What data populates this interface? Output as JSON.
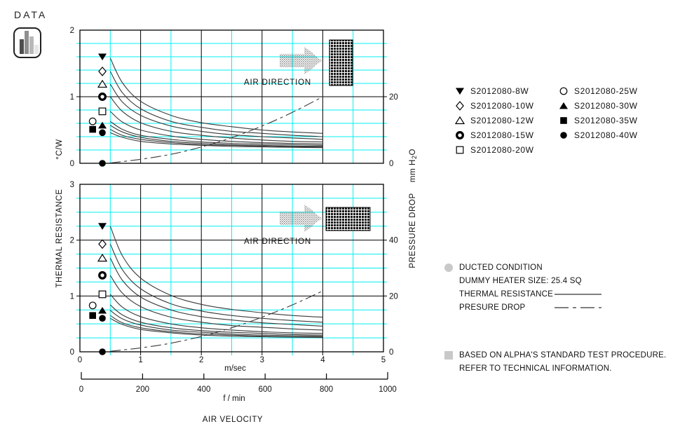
{
  "badge": {
    "label": "DATA"
  },
  "colors": {
    "grid": "#00f0f0",
    "curve": "#3a3a3a",
    "axis": "#000000",
    "bullet": "#c9c9c9",
    "bar_grays": [
      "#4d4d4d",
      "#8f8f8f",
      "#b8b8b8",
      "#e6e6e6"
    ]
  },
  "axis_titles": {
    "left_primary": "THERMAL RESISTANCE",
    "left_unit": "°C/W",
    "right_primary": "PRESSURE DROP",
    "right_unit": "mm H2O",
    "x_primary": "m/sec",
    "x_secondary": "f / min",
    "x_title": "AIR VELOCITY"
  },
  "secondary_axis": {
    "labels": [
      "0",
      "200",
      "400",
      "600",
      "800",
      "1000"
    ]
  },
  "legend": {
    "columns": [
      [
        {
          "marker": "tri-down-f",
          "label": "S2012080-8W"
        },
        {
          "marker": "diamond-o",
          "label": "S2012080-10W"
        },
        {
          "marker": "tri-up-o",
          "label": "S2012080-12W"
        },
        {
          "marker": "circle-bull",
          "label": "S2012080-15W"
        },
        {
          "marker": "square-o",
          "label": "S2012080-20W"
        }
      ],
      [
        {
          "marker": "circle-o",
          "label": "S2012080-25W"
        },
        {
          "marker": "tri-up-f",
          "label": "S2012080-30W"
        },
        {
          "marker": "square-f",
          "label": "S2012080-35W"
        },
        {
          "marker": "circle-f",
          "label": "S2012080-40W"
        }
      ]
    ]
  },
  "notes": {
    "line1": "DUCTED CONDITION",
    "line2": "DUMMY HEATER SIZE: 25.4 SQ",
    "line3": "THERMAL RESISTANCE",
    "line4": "PRESURE DROP",
    "footer1": "BASED ON ALPHA'S STANDARD TEST PROCEDURE.",
    "footer2": "REFER TO TECHNICAL INFORMATION."
  },
  "chart_data": [
    {
      "type": "line",
      "title": "Thermal resistance and pressure drop vs air velocity (duct orientation 1)",
      "air_direction_label": "AIR DIRECTION",
      "x": {
        "range": [
          0,
          5
        ],
        "major": 1,
        "minor": 0.5,
        "labels": null
      },
      "y_left": {
        "range": [
          0,
          2
        ],
        "minor": 0.2,
        "labels": [
          {
            "v": 2,
            "t": "2"
          },
          {
            "v": 1,
            "t": "1"
          },
          {
            "v": 0,
            "t": "0"
          }
        ]
      },
      "y_right": {
        "mm_per_left_unit": 20,
        "labels": [
          {
            "v": 20,
            "t": "20"
          },
          {
            "v": 0,
            "t": "0"
          }
        ]
      },
      "series_x": [
        0.5,
        0.7,
        1,
        1.5,
        2,
        2.5,
        3,
        3.5,
        4
      ],
      "series": [
        {
          "name": "S2012080-8W",
          "marker": "tri-down-f",
          "marker_at": [
            0.37,
            1.6
          ],
          "y": [
            1.58,
            1.21,
            0.93,
            0.72,
            0.61,
            0.55,
            0.5,
            0.47,
            0.45
          ]
        },
        {
          "name": "S2012080-10W",
          "marker": "diamond-o",
          "marker_at": [
            0.37,
            1.38
          ],
          "y": [
            1.38,
            1.06,
            0.82,
            0.63,
            0.54,
            0.48,
            0.45,
            0.42,
            0.4
          ]
        },
        {
          "name": "S2012080-12W",
          "marker": "tri-up-o",
          "marker_at": [
            0.37,
            1.19
          ],
          "y": [
            1.19,
            0.92,
            0.72,
            0.56,
            0.48,
            0.43,
            0.4,
            0.38,
            0.36
          ]
        },
        {
          "name": "S2012080-15W",
          "marker": "circle-bull",
          "marker_at": [
            0.37,
            1.0
          ],
          "y": [
            1.0,
            0.78,
            0.61,
            0.48,
            0.42,
            0.38,
            0.35,
            0.33,
            0.32
          ]
        },
        {
          "name": "S2012080-20W",
          "marker": "square-o",
          "marker_at": [
            0.37,
            0.78
          ],
          "y": [
            0.78,
            0.62,
            0.5,
            0.41,
            0.36,
            0.33,
            0.31,
            0.3,
            0.29
          ]
        },
        {
          "name": "S2012080-25W",
          "marker": "circle-o",
          "marker_at": [
            0.21,
            0.63
          ],
          "y": [
            0.63,
            0.51,
            0.42,
            0.36,
            0.32,
            0.3,
            0.29,
            0.28,
            0.27
          ]
        },
        {
          "name": "S2012080-30W",
          "marker": "tri-up-f",
          "marker_at": [
            0.37,
            0.57
          ],
          "y": [
            0.57,
            0.47,
            0.39,
            0.33,
            0.3,
            0.28,
            0.27,
            0.26,
            0.255
          ]
        },
        {
          "name": "S2012080-35W",
          "marker": "square-f",
          "marker_at": [
            0.21,
            0.51
          ],
          "y": [
            0.51,
            0.42,
            0.36,
            0.31,
            0.28,
            0.27,
            0.258,
            0.25,
            0.245
          ]
        },
        {
          "name": "S2012080-40W",
          "marker": "circle-f",
          "marker_at": [
            0.37,
            0.46
          ],
          "y": [
            0.46,
            0.39,
            0.33,
            0.29,
            0.27,
            0.254,
            0.246,
            0.24,
            0.235
          ]
        }
      ],
      "pressure": {
        "name": "PRESSURE DROP",
        "style": "dash-dot",
        "marker": "circle-f",
        "marker_at": [
          0.37,
          0
        ],
        "x": [
          0.5,
          1,
          1.5,
          2,
          2.5,
          3,
          3.5,
          4
        ],
        "y_mm": [
          0.1,
          1.2,
          2.7,
          4.9,
          7.7,
          11.2,
          15.3,
          20
        ]
      }
    },
    {
      "type": "line",
      "title": "Thermal resistance and pressure drop vs air velocity (duct orientation 2)",
      "air_direction_label": "AIR DIRECTION",
      "x": {
        "range": [
          0,
          5
        ],
        "major": 1,
        "minor": 0.5,
        "labels": [
          "0",
          "1",
          "2",
          "3",
          "4",
          "5"
        ]
      },
      "y_left": {
        "range": [
          0,
          3
        ],
        "minor": 0.25,
        "labels": [
          {
            "v": 3,
            "t": "3"
          },
          {
            "v": 2,
            "t": "2"
          },
          {
            "v": 1,
            "t": "1"
          },
          {
            "v": 0,
            "t": "0"
          }
        ]
      },
      "y_right": {
        "mm_per_left_unit": 20,
        "labels": [
          {
            "v": 40,
            "t": "40"
          },
          {
            "v": 20,
            "t": "20"
          },
          {
            "v": 0,
            "t": "0"
          }
        ]
      },
      "series_x": [
        0.5,
        0.7,
        1,
        1.5,
        2,
        2.5,
        3,
        3.5,
        4
      ],
      "series": [
        {
          "name": "S2012080-8W",
          "marker": "tri-down-f",
          "marker_at": [
            0.37,
            2.25
          ],
          "y": [
            2.25,
            1.72,
            1.32,
            1.01,
            0.85,
            0.76,
            0.7,
            0.65,
            0.62
          ]
        },
        {
          "name": "S2012080-10W",
          "marker": "diamond-o",
          "marker_at": [
            0.37,
            1.93
          ],
          "y": [
            1.93,
            1.47,
            1.13,
            0.86,
            0.73,
            0.65,
            0.6,
            0.56,
            0.53
          ]
        },
        {
          "name": "S2012080-12W",
          "marker": "tri-up-o",
          "marker_at": [
            0.37,
            1.68
          ],
          "y": [
            1.68,
            1.28,
            0.98,
            0.75,
            0.63,
            0.57,
            0.52,
            0.49,
            0.46
          ]
        },
        {
          "name": "S2012080-15W",
          "marker": "circle-bull",
          "marker_at": [
            0.37,
            1.37
          ],
          "y": [
            1.37,
            1.05,
            0.81,
            0.62,
            0.53,
            0.47,
            0.44,
            0.41,
            0.39
          ]
        },
        {
          "name": "S2012080-20W",
          "marker": "square-o",
          "marker_at": [
            0.37,
            1.03
          ],
          "y": [
            1.03,
            0.8,
            0.63,
            0.5,
            0.43,
            0.39,
            0.36,
            0.34,
            0.33
          ]
        },
        {
          "name": "S2012080-25W",
          "marker": "circle-o",
          "marker_at": [
            0.21,
            0.83
          ],
          "y": [
            0.84,
            0.66,
            0.53,
            0.43,
            0.38,
            0.35,
            0.33,
            0.31,
            0.3
          ]
        },
        {
          "name": "S2012080-30W",
          "marker": "tri-up-f",
          "marker_at": [
            0.37,
            0.74
          ],
          "y": [
            0.74,
            0.59,
            0.48,
            0.39,
            0.35,
            0.32,
            0.3,
            0.29,
            0.28
          ]
        },
        {
          "name": "S2012080-35W",
          "marker": "square-f",
          "marker_at": [
            0.21,
            0.65
          ],
          "y": [
            0.65,
            0.52,
            0.43,
            0.36,
            0.32,
            0.3,
            0.28,
            0.27,
            0.265
          ]
        },
        {
          "name": "S2012080-40W",
          "marker": "circle-f",
          "marker_at": [
            0.37,
            0.6
          ],
          "y": [
            0.6,
            0.49,
            0.4,
            0.34,
            0.3,
            0.28,
            0.27,
            0.262,
            0.255
          ]
        }
      ],
      "pressure": {
        "name": "PRESSURE DROP",
        "style": "dash-dot",
        "marker": "circle-f",
        "marker_at": [
          0.37,
          0
        ],
        "x": [
          0.5,
          1,
          1.5,
          2,
          2.5,
          3,
          3.5,
          4
        ],
        "y_mm": [
          0.2,
          1.4,
          3.1,
          5.5,
          8.6,
          12.4,
          16.8,
          21.8
        ]
      }
    }
  ]
}
